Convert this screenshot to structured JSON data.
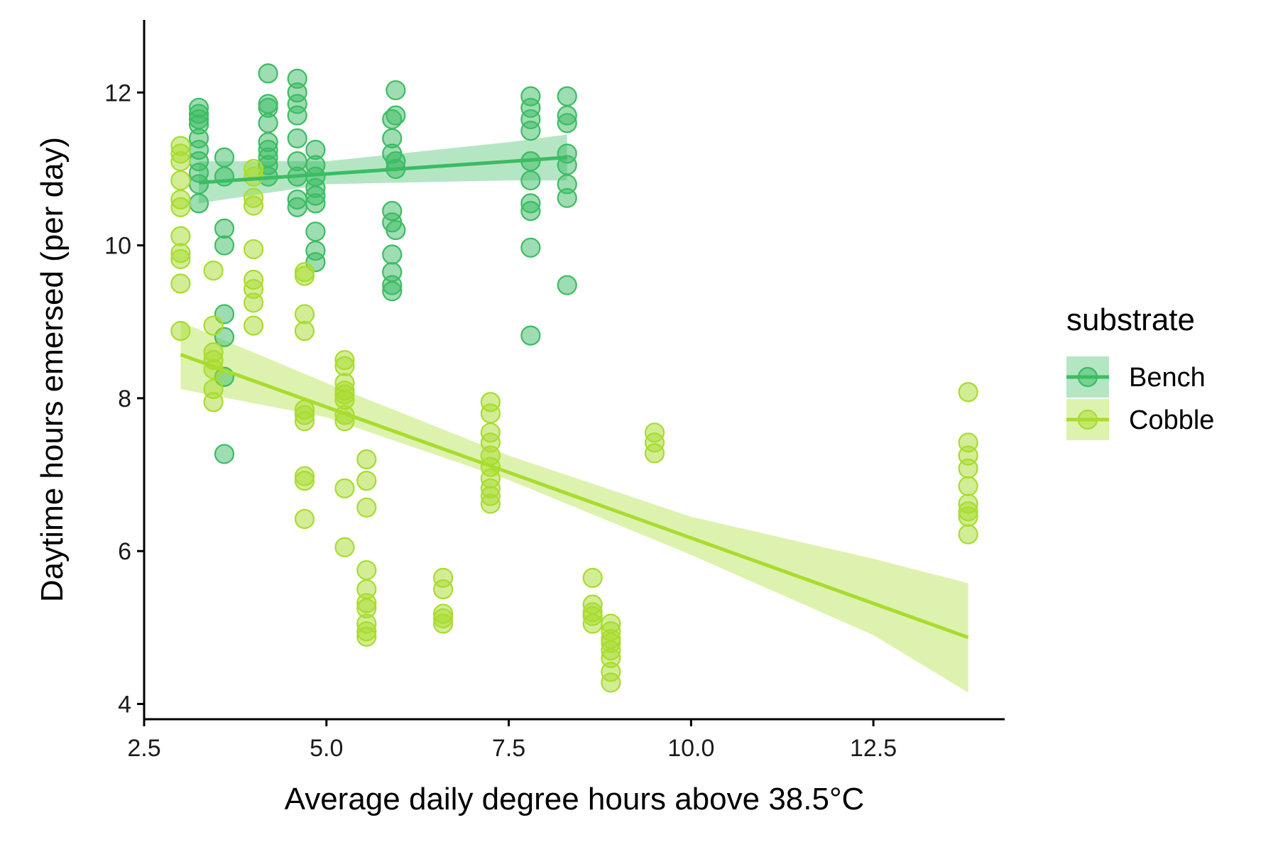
{
  "chart_data": {
    "type": "scatter",
    "xlabel": "Average daily degree hours above 38.5°C",
    "ylabel": "Daytime hours emersed (per day)",
    "xlim": [
      2.5,
      14.3
    ],
    "ylim": [
      3.8,
      12.95
    ],
    "x_ticks": [
      2.5,
      5.0,
      7.5,
      10.0,
      12.5
    ],
    "x_tick_labels": [
      "2.5",
      "5.0",
      "7.5",
      "10.0",
      "12.5"
    ],
    "y_ticks": [
      4,
      6,
      8,
      10,
      12
    ],
    "y_tick_labels": [
      "4",
      "6",
      "8",
      "10",
      "12"
    ],
    "grid": false,
    "legend": {
      "title": "substrate",
      "placement": "right"
    },
    "series": [
      {
        "name": "Bench",
        "color": "#3cbc63",
        "trend": {
          "x": [
            3.25,
            8.3
          ],
          "y": [
            10.82,
            11.15
          ]
        },
        "ci": {
          "x": [
            3.25,
            5.0,
            7.5,
            8.3
          ],
          "lower": [
            10.55,
            10.8,
            10.85,
            10.85
          ],
          "upper": [
            11.1,
            11.1,
            11.35,
            11.45
          ]
        },
        "points": [
          [
            3.25,
            11.8
          ],
          [
            3.25,
            11.72
          ],
          [
            3.25,
            11.65
          ],
          [
            3.25,
            11.58
          ],
          [
            3.25,
            11.4
          ],
          [
            3.25,
            11.25
          ],
          [
            3.25,
            11.1
          ],
          [
            3.25,
            10.95
          ],
          [
            3.25,
            10.8
          ],
          [
            3.25,
            10.55
          ],
          [
            3.6,
            11.15
          ],
          [
            3.6,
            10.9
          ],
          [
            3.6,
            10.22
          ],
          [
            3.6,
            10.0
          ],
          [
            3.6,
            9.1
          ],
          [
            3.6,
            8.8
          ],
          [
            3.6,
            8.28
          ],
          [
            3.6,
            7.27
          ],
          [
            4.2,
            12.25
          ],
          [
            4.2,
            11.85
          ],
          [
            4.2,
            11.8
          ],
          [
            4.2,
            11.6
          ],
          [
            4.2,
            11.35
          ],
          [
            4.2,
            11.25
          ],
          [
            4.2,
            11.15
          ],
          [
            4.2,
            11.05
          ],
          [
            4.2,
            10.9
          ],
          [
            4.6,
            12.18
          ],
          [
            4.6,
            12.0
          ],
          [
            4.6,
            11.85
          ],
          [
            4.6,
            11.7
          ],
          [
            4.6,
            11.4
          ],
          [
            4.6,
            11.1
          ],
          [
            4.6,
            10.9
          ],
          [
            4.6,
            10.6
          ],
          [
            4.6,
            10.5
          ],
          [
            4.85,
            11.25
          ],
          [
            4.85,
            11.05
          ],
          [
            4.85,
            10.9
          ],
          [
            4.85,
            10.75
          ],
          [
            4.85,
            10.65
          ],
          [
            4.85,
            10.55
          ],
          [
            4.85,
            10.18
          ],
          [
            4.85,
            9.93
          ],
          [
            4.85,
            9.78
          ],
          [
            5.9,
            11.65
          ],
          [
            5.9,
            11.4
          ],
          [
            5.9,
            11.2
          ],
          [
            5.9,
            10.45
          ],
          [
            5.9,
            10.3
          ],
          [
            5.9,
            9.88
          ],
          [
            5.9,
            9.65
          ],
          [
            5.9,
            9.48
          ],
          [
            5.9,
            9.4
          ],
          [
            5.95,
            12.03
          ],
          [
            5.95,
            11.7
          ],
          [
            5.95,
            11.1
          ],
          [
            5.95,
            11.0
          ],
          [
            5.95,
            10.2
          ],
          [
            7.8,
            11.95
          ],
          [
            7.8,
            11.8
          ],
          [
            7.8,
            11.65
          ],
          [
            7.8,
            11.5
          ],
          [
            7.8,
            11.1
          ],
          [
            7.8,
            10.85
          ],
          [
            7.8,
            10.55
          ],
          [
            7.8,
            10.45
          ],
          [
            7.8,
            9.97
          ],
          [
            7.8,
            8.82
          ],
          [
            8.3,
            11.95
          ],
          [
            8.3,
            11.7
          ],
          [
            8.3,
            11.6
          ],
          [
            8.3,
            11.2
          ],
          [
            8.3,
            11.05
          ],
          [
            8.3,
            10.8
          ],
          [
            8.3,
            10.62
          ],
          [
            8.3,
            9.48
          ]
        ]
      },
      {
        "name": "Cobble",
        "color": "#a8dc2e",
        "trend": {
          "x": [
            3.0,
            13.8
          ],
          "y": [
            8.57,
            4.87
          ]
        },
        "ci": {
          "x": [
            3.0,
            5.0,
            7.5,
            10.0,
            12.5,
            13.8
          ],
          "lower": [
            8.12,
            7.75,
            6.93,
            5.95,
            4.9,
            4.15
          ],
          "upper": [
            9.0,
            8.2,
            7.25,
            6.45,
            5.9,
            5.58
          ]
        },
        "points": [
          [
            3.0,
            11.3
          ],
          [
            3.0,
            11.2
          ],
          [
            3.0,
            11.1
          ],
          [
            3.0,
            10.85
          ],
          [
            3.0,
            10.6
          ],
          [
            3.0,
            10.5
          ],
          [
            3.0,
            10.12
          ],
          [
            3.0,
            9.9
          ],
          [
            3.0,
            9.82
          ],
          [
            3.0,
            9.5
          ],
          [
            3.0,
            8.88
          ],
          [
            3.45,
            9.67
          ],
          [
            3.45,
            8.95
          ],
          [
            3.45,
            8.6
          ],
          [
            3.45,
            8.5
          ],
          [
            3.45,
            8.38
          ],
          [
            3.45,
            8.12
          ],
          [
            3.45,
            7.95
          ],
          [
            4.0,
            11.0
          ],
          [
            4.0,
            10.9
          ],
          [
            4.0,
            10.62
          ],
          [
            4.0,
            10.52
          ],
          [
            4.0,
            9.95
          ],
          [
            4.0,
            9.55
          ],
          [
            4.0,
            9.43
          ],
          [
            4.0,
            9.25
          ],
          [
            4.0,
            8.95
          ],
          [
            4.7,
            9.65
          ],
          [
            4.7,
            9.6
          ],
          [
            4.7,
            9.1
          ],
          [
            4.7,
            8.88
          ],
          [
            4.7,
            7.85
          ],
          [
            4.7,
            7.78
          ],
          [
            4.7,
            7.7
          ],
          [
            4.7,
            6.98
          ],
          [
            4.7,
            6.92
          ],
          [
            4.7,
            6.42
          ],
          [
            5.25,
            8.5
          ],
          [
            5.25,
            8.42
          ],
          [
            5.25,
            8.2
          ],
          [
            5.25,
            8.1
          ],
          [
            5.25,
            8.05
          ],
          [
            5.25,
            7.98
          ],
          [
            5.25,
            7.78
          ],
          [
            5.25,
            7.7
          ],
          [
            5.25,
            6.82
          ],
          [
            5.25,
            6.05
          ],
          [
            5.55,
            7.2
          ],
          [
            5.55,
            6.92
          ],
          [
            5.55,
            6.57
          ],
          [
            5.55,
            5.75
          ],
          [
            5.55,
            5.5
          ],
          [
            5.55,
            5.32
          ],
          [
            5.55,
            5.25
          ],
          [
            5.55,
            5.05
          ],
          [
            5.55,
            4.95
          ],
          [
            5.55,
            4.88
          ],
          [
            6.6,
            5.65
          ],
          [
            6.6,
            5.5
          ],
          [
            6.6,
            5.18
          ],
          [
            6.6,
            5.12
          ],
          [
            6.6,
            5.05
          ],
          [
            7.25,
            7.95
          ],
          [
            7.25,
            7.8
          ],
          [
            7.25,
            7.55
          ],
          [
            7.25,
            7.42
          ],
          [
            7.25,
            7.25
          ],
          [
            7.25,
            7.1
          ],
          [
            7.25,
            6.95
          ],
          [
            7.25,
            6.82
          ],
          [
            7.25,
            6.72
          ],
          [
            7.25,
            6.62
          ],
          [
            8.65,
            5.65
          ],
          [
            8.65,
            5.3
          ],
          [
            8.65,
            5.2
          ],
          [
            8.65,
            5.15
          ],
          [
            8.65,
            5.05
          ],
          [
            8.9,
            5.05
          ],
          [
            8.9,
            4.95
          ],
          [
            8.9,
            4.85
          ],
          [
            8.9,
            4.8
          ],
          [
            8.9,
            4.7
          ],
          [
            8.9,
            4.6
          ],
          [
            8.9,
            4.42
          ],
          [
            8.9,
            4.28
          ],
          [
            9.5,
            7.55
          ],
          [
            9.5,
            7.42
          ],
          [
            9.5,
            7.28
          ],
          [
            13.8,
            8.08
          ],
          [
            13.8,
            7.42
          ],
          [
            13.8,
            7.25
          ],
          [
            13.8,
            7.08
          ],
          [
            13.8,
            6.85
          ],
          [
            13.8,
            6.62
          ],
          [
            13.8,
            6.52
          ],
          [
            13.8,
            6.45
          ],
          [
            13.8,
            6.22
          ]
        ]
      }
    ]
  }
}
